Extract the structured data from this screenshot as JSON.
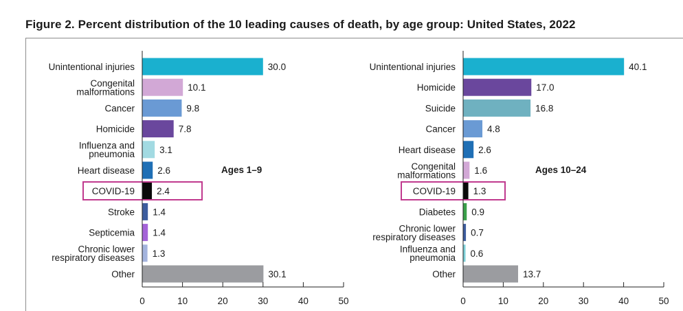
{
  "figure_title": "Figure 2. Percent distribution of the 10 leading causes of death, by age group: United States, 2022",
  "colors": {
    "axis": "#222222",
    "highlight_box": "#c0398e",
    "frame": "#8c8c8c"
  },
  "chart_data": [
    {
      "type": "bar",
      "orientation": "horizontal",
      "panel_label": "Ages 1–9",
      "categories": [
        "Unintentional injuries",
        "Congenital malformations",
        "Cancer",
        "Homicide",
        "Influenza and pneumonia",
        "Heart disease",
        "COVID-19",
        "Stroke",
        "Septicemia",
        "Chronic lower respiratory diseases",
        "Other"
      ],
      "category_display_lines": [
        [
          "Unintentional injuries"
        ],
        [
          "Congenital",
          "malformations"
        ],
        [
          "Cancer"
        ],
        [
          "Homicide"
        ],
        [
          "Influenza and",
          "pneumonia"
        ],
        [
          "Heart disease"
        ],
        [
          "COVID-19"
        ],
        [
          "Stroke"
        ],
        [
          "Septicemia"
        ],
        [
          "Chronic lower",
          "respiratory diseases"
        ],
        [
          "Other"
        ]
      ],
      "values": [
        30.0,
        10.1,
        9.8,
        7.8,
        3.1,
        2.6,
        2.4,
        1.4,
        1.4,
        1.3,
        30.1
      ],
      "value_labels": [
        "30.0",
        "10.1",
        "9.8",
        "7.8",
        "3.1",
        "2.6",
        "2.4",
        "1.4",
        "1.4",
        "1.3",
        "30.1"
      ],
      "bar_colors": [
        "#1ab0cf",
        "#d2a8d6",
        "#6a9ad4",
        "#6a479d",
        "#a2dae2",
        "#1f6fb5",
        "#0a0a0a",
        "#3d5d9e",
        "#a463d8",
        "#a4b4de",
        "#9b9ca0"
      ],
      "highlighted_category": "COVID-19",
      "xlim": [
        0,
        50
      ],
      "xticks": [
        0,
        10,
        20,
        30,
        40,
        50
      ],
      "grid": false
    },
    {
      "type": "bar",
      "orientation": "horizontal",
      "panel_label": "Ages 10–24",
      "categories": [
        "Unintentional injuries",
        "Homicide",
        "Suicide",
        "Cancer",
        "Heart disease",
        "Congenital malformations",
        "COVID-19",
        "Diabetes",
        "Chronic lower respiratory diseases",
        "Influenza and pneumonia",
        "Other"
      ],
      "category_display_lines": [
        [
          "Unintentional injuries"
        ],
        [
          "Homicide"
        ],
        [
          "Suicide"
        ],
        [
          "Cancer"
        ],
        [
          "Heart disease"
        ],
        [
          "Congenital",
          "malformations"
        ],
        [
          "COVID-19"
        ],
        [
          "Diabetes"
        ],
        [
          "Chronic lower",
          "respiratory diseases"
        ],
        [
          "Influenza and",
          "pneumonia"
        ],
        [
          "Other"
        ]
      ],
      "values": [
        40.1,
        17.0,
        16.8,
        4.8,
        2.6,
        1.6,
        1.3,
        0.9,
        0.7,
        0.6,
        13.7
      ],
      "value_labels": [
        "40.1",
        "17.0",
        "16.8",
        "4.8",
        "2.6",
        "1.6",
        "1.3",
        "0.9",
        "0.7",
        "0.6",
        "13.7"
      ],
      "bar_colors": [
        "#1ab0cf",
        "#6a479d",
        "#6fb1c0",
        "#6a9ad4",
        "#1f6fb5",
        "#d2a8d6",
        "#0a0a0a",
        "#3aa04a",
        "#3d5d9e",
        "#7fd0d8",
        "#9b9ca0"
      ],
      "highlighted_category": "COVID-19",
      "xlim": [
        0,
        50
      ],
      "xticks": [
        0,
        10,
        20,
        30,
        40,
        50
      ],
      "grid": false
    }
  ]
}
